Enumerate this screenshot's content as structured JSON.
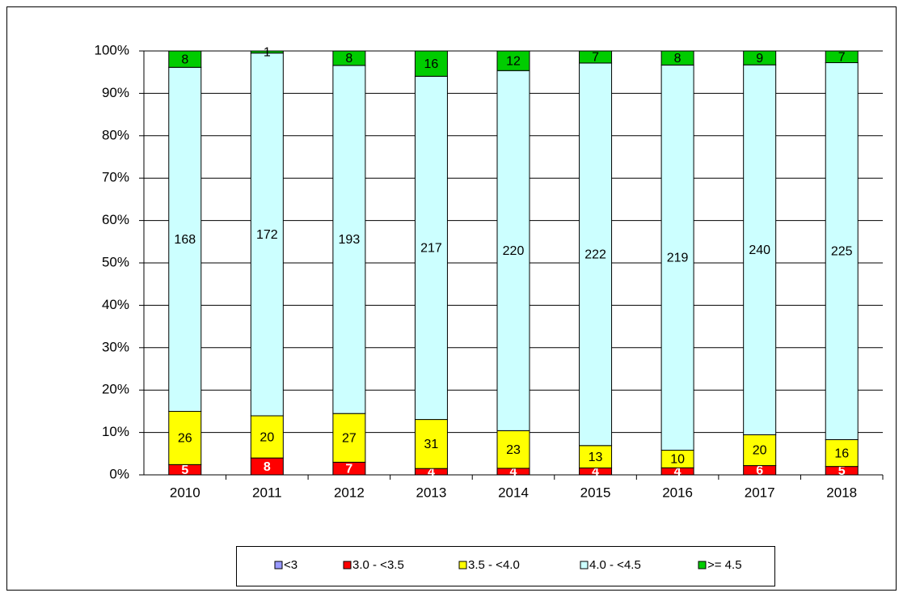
{
  "chart_data": {
    "type": "bar",
    "stacked": "percent",
    "categories": [
      "2010",
      "2011",
      "2012",
      "2013",
      "2014",
      "2015",
      "2016",
      "2017",
      "2018"
    ],
    "series": [
      {
        "name": "<3",
        "color": "#9999ff",
        "values": [
          0,
          0,
          0,
          0,
          0,
          0,
          0,
          0,
          0
        ]
      },
      {
        "name": "3.0 - <3.5",
        "color": "#ff0000",
        "values": [
          5,
          8,
          7,
          4,
          4,
          4,
          4,
          6,
          5
        ]
      },
      {
        "name": "3.5 - <4.0",
        "color": "#ffff00",
        "values": [
          26,
          20,
          27,
          31,
          23,
          13,
          10,
          20,
          16
        ]
      },
      {
        "name": "4.0 - <4.5",
        "color": "#ccffff",
        "values": [
          168,
          172,
          193,
          217,
          220,
          222,
          219,
          240,
          225
        ]
      },
      {
        "name": ">= 4.5",
        "color": "#00cc00",
        "values": [
          8,
          1,
          8,
          16,
          12,
          7,
          8,
          9,
          7
        ]
      }
    ],
    "ylim": [
      0,
      100
    ],
    "yticks": [
      {
        "value": 0,
        "label": "0%"
      },
      {
        "value": 10,
        "label": "10%"
      },
      {
        "value": 20,
        "label": "20%"
      },
      {
        "value": 30,
        "label": "30%"
      },
      {
        "value": 40,
        "label": "40%"
      },
      {
        "value": 50,
        "label": "50%"
      },
      {
        "value": 60,
        "label": "60%"
      },
      {
        "value": 70,
        "label": "70%"
      },
      {
        "value": 80,
        "label": "80%"
      },
      {
        "value": 90,
        "label": "90%"
      },
      {
        "value": 100,
        "label": "100%"
      }
    ],
    "grid": true,
    "legend": "bottom"
  }
}
